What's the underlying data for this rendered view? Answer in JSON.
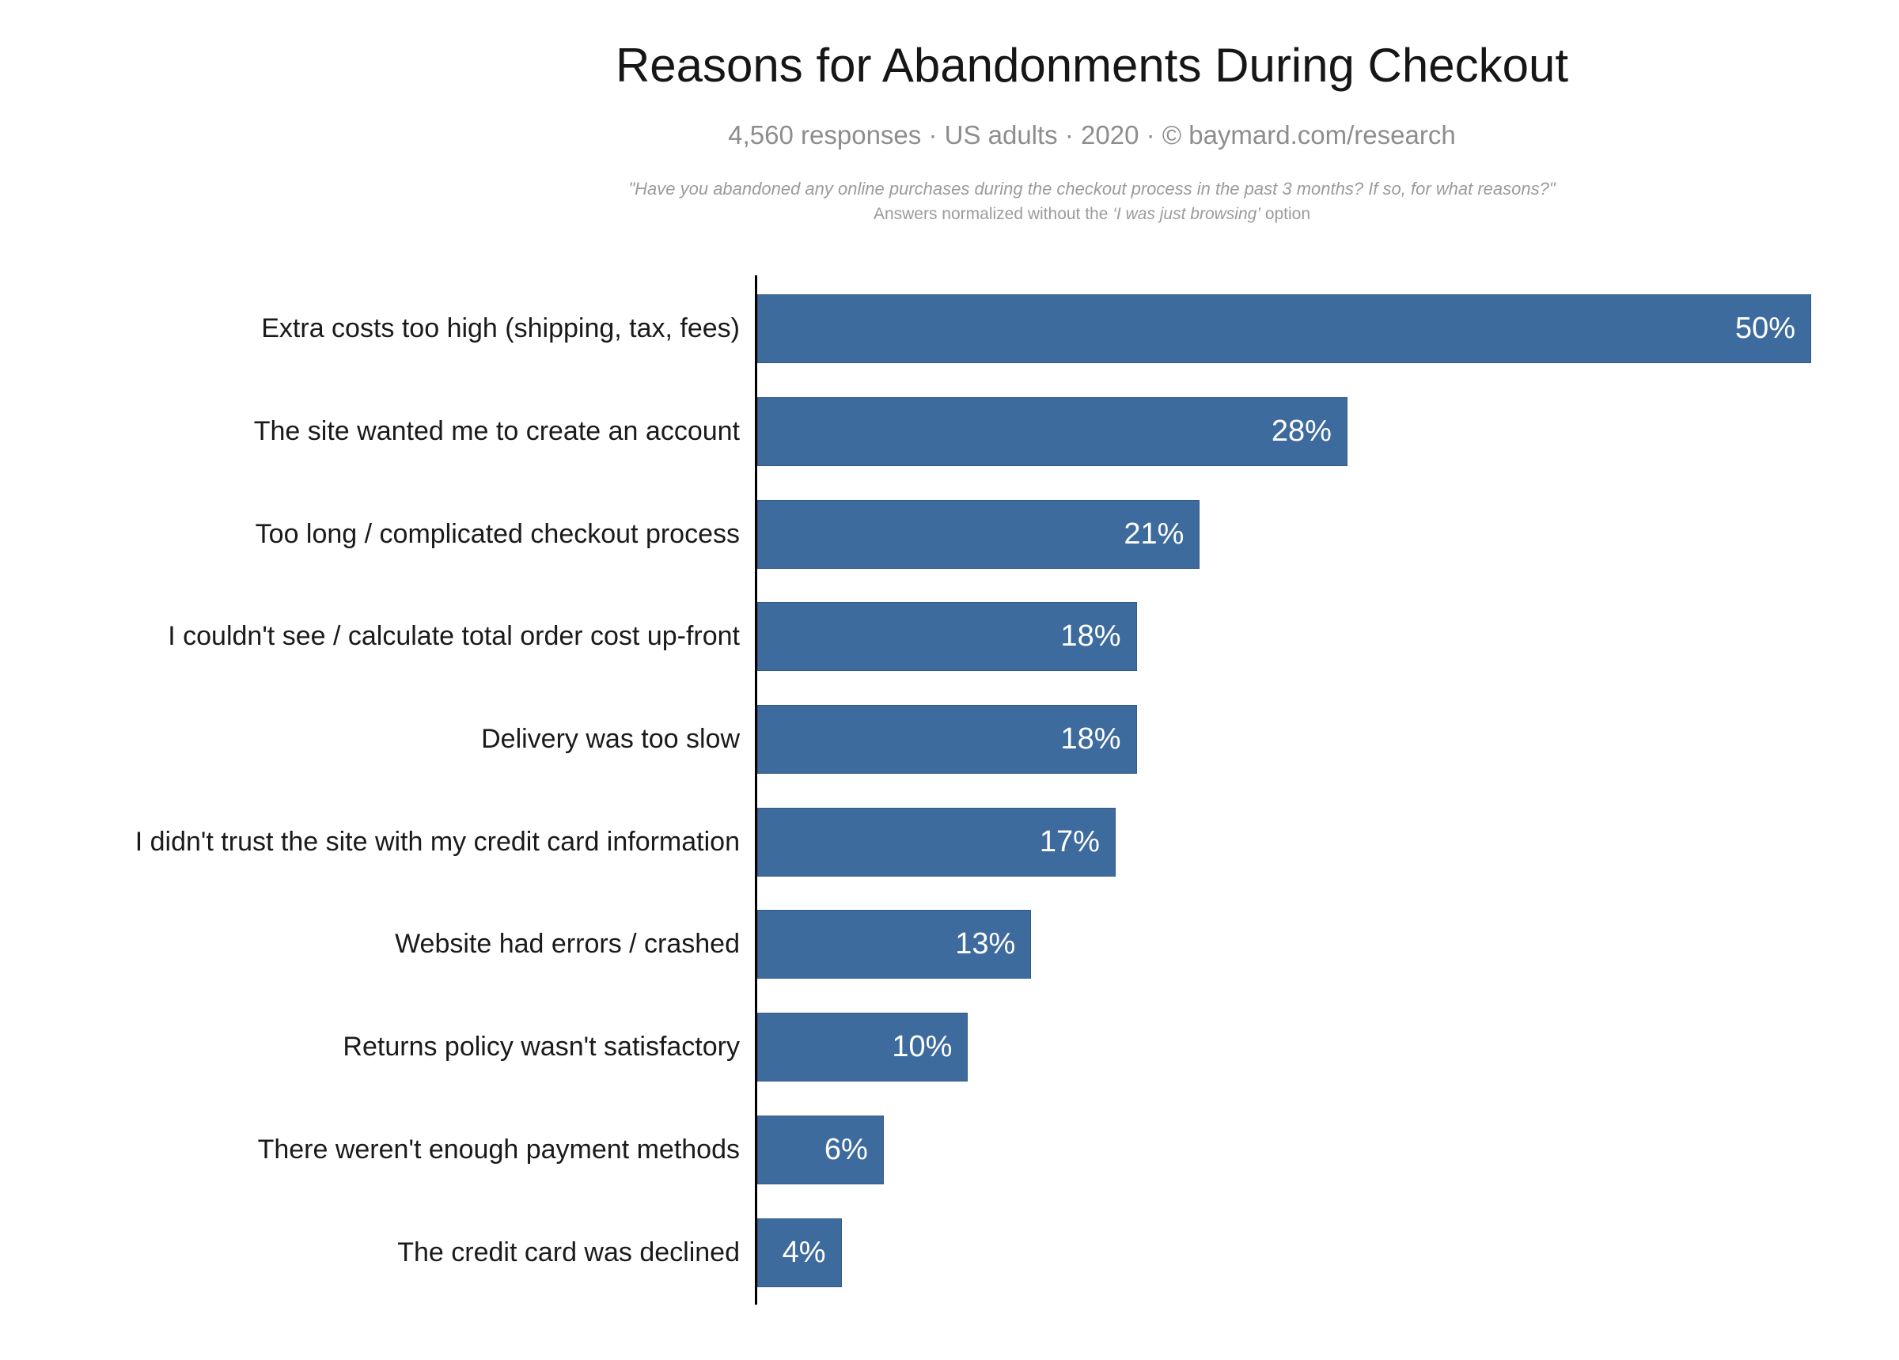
{
  "header": {
    "title": "Reasons for Abandonments During Checkout",
    "subtitle": "4,560 responses  ·  US adults  ·  2020  ·  ©  baymard.com/research",
    "quote_line1": "\"Have you abandoned any online purchases during the checkout process in the past 3 months? If so, for what reasons?\"",
    "quote_line2_prefix": "Answers normalized without the ",
    "quote_line2_italic": "‘I was just browsing’",
    "quote_line2_suffix": " option"
  },
  "chart_data": {
    "type": "bar",
    "orientation": "horizontal",
    "title": "Reasons for Abandonments During Checkout",
    "xlabel": "",
    "ylabel": "",
    "xlim": [
      0,
      50
    ],
    "grid": false,
    "legend": false,
    "categories": [
      "Extra costs too high (shipping, tax, fees)",
      "The site wanted me to create an account",
      "Too long / complicated checkout process",
      "I couldn't see / calculate total order cost up-front",
      "Delivery was too slow",
      "I didn't trust the site with my credit card information",
      "Website had errors / crashed",
      "Returns policy wasn't satisfactory",
      "There weren't enough payment methods",
      "The credit card was declined"
    ],
    "values": [
      50,
      28,
      21,
      18,
      18,
      17,
      13,
      10,
      6,
      4
    ],
    "value_labels": [
      "50%",
      "28%",
      "21%",
      "18%",
      "18%",
      "17%",
      "13%",
      "10%",
      "6%",
      "4%"
    ]
  },
  "colors": {
    "bar": "#3e6b9d",
    "value_label": "#ffffff",
    "axis": "#000000",
    "category_label": "#1a1a1a",
    "subtitle": "#8d8d8d",
    "quote": "#9b9b9b",
    "background": "#ffffff"
  }
}
